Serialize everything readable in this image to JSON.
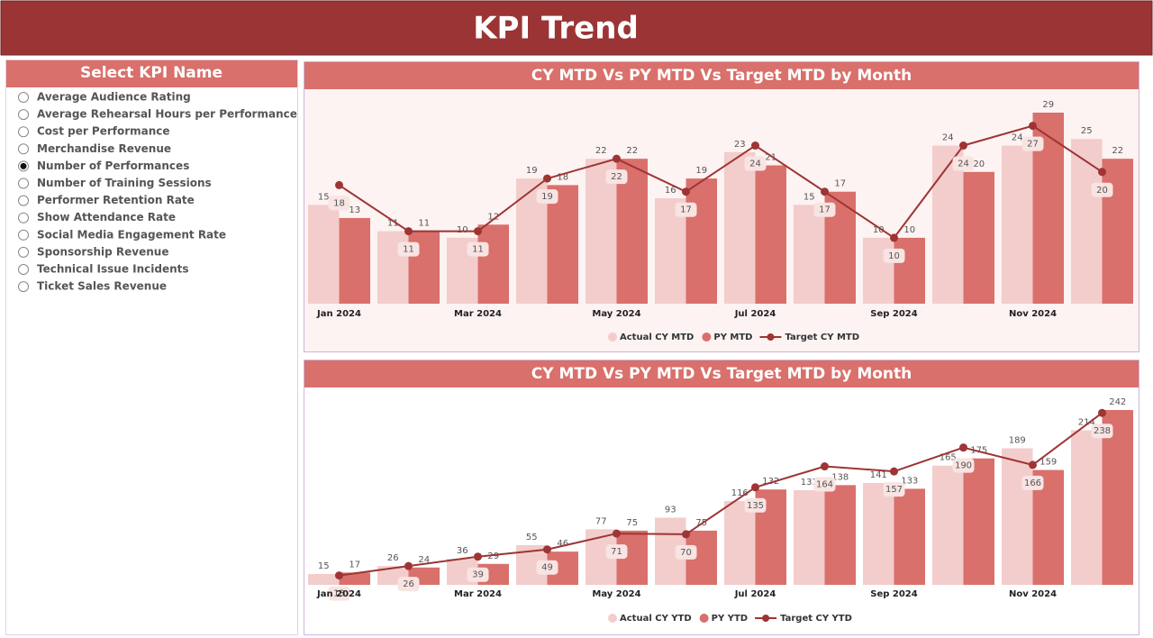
{
  "header": {
    "title": "KPI Trend"
  },
  "slicer": {
    "title": "Select KPI Name",
    "selected_index": 4,
    "items": [
      "Average Audience Rating",
      "Average Rehearsal Hours per Performance",
      "Cost per Performance",
      "Merchandise Revenue",
      "Number of Performances",
      "Number of Training Sessions",
      "Performer Retention Rate",
      "Show Attendance Rate",
      "Social Media Engagement Rate",
      "Sponsorship Revenue",
      "Technical Issue Incidents",
      "Ticket Sales Revenue"
    ]
  },
  "chart_data": [
    {
      "type": "combo",
      "title": "CY MTD Vs PY MTD Vs Target MTD by Month",
      "categories": [
        "Jan 2024",
        null,
        "Mar 2024",
        null,
        "May 2024",
        null,
        "Jul 2024",
        null,
        "Sep 2024",
        null,
        "Nov 2024",
        null
      ],
      "series": [
        {
          "name": "Actual CY MTD",
          "kind": "bar",
          "color": "#f2cdcc",
          "values": [
            15,
            11,
            10,
            19,
            22,
            16,
            23,
            15,
            10,
            24,
            24,
            25
          ]
        },
        {
          "name": "PY MTD",
          "kind": "bar",
          "color": "#d9706b",
          "values": [
            13,
            11,
            12,
            18,
            22,
            19,
            21,
            17,
            10,
            20,
            29,
            22
          ]
        },
        {
          "name": "Target CY MTD",
          "kind": "line",
          "color": "#9e3434",
          "values": [
            18,
            11,
            11,
            19,
            22,
            17,
            24,
            17,
            10,
            24,
            27,
            20
          ]
        }
      ]
    },
    {
      "type": "combo",
      "title": "CY MTD Vs PY MTD Vs Target MTD by Month",
      "categories": [
        "Jan 2024",
        null,
        "Mar 2024",
        null,
        "May 2024",
        null,
        "Jul 2024",
        null,
        "Sep 2024",
        null,
        "Nov 2024",
        null
      ],
      "series": [
        {
          "name": "Actual CY YTD",
          "kind": "bar",
          "color": "#f2cdcc",
          "values": [
            15,
            26,
            36,
            55,
            77,
            93,
            116,
            131,
            141,
            165,
            189,
            214
          ]
        },
        {
          "name": "PY YTD",
          "kind": "bar",
          "color": "#d9706b",
          "values": [
            17,
            24,
            29,
            46,
            75,
            75,
            132,
            138,
            133,
            175,
            159,
            242
          ]
        },
        {
          "name": "Target CY YTD",
          "kind": "line",
          "color": "#9e3434",
          "values": [
            13,
            26,
            39,
            49,
            71,
            70,
            135,
            164,
            157,
            190,
            166,
            238
          ]
        }
      ]
    }
  ]
}
